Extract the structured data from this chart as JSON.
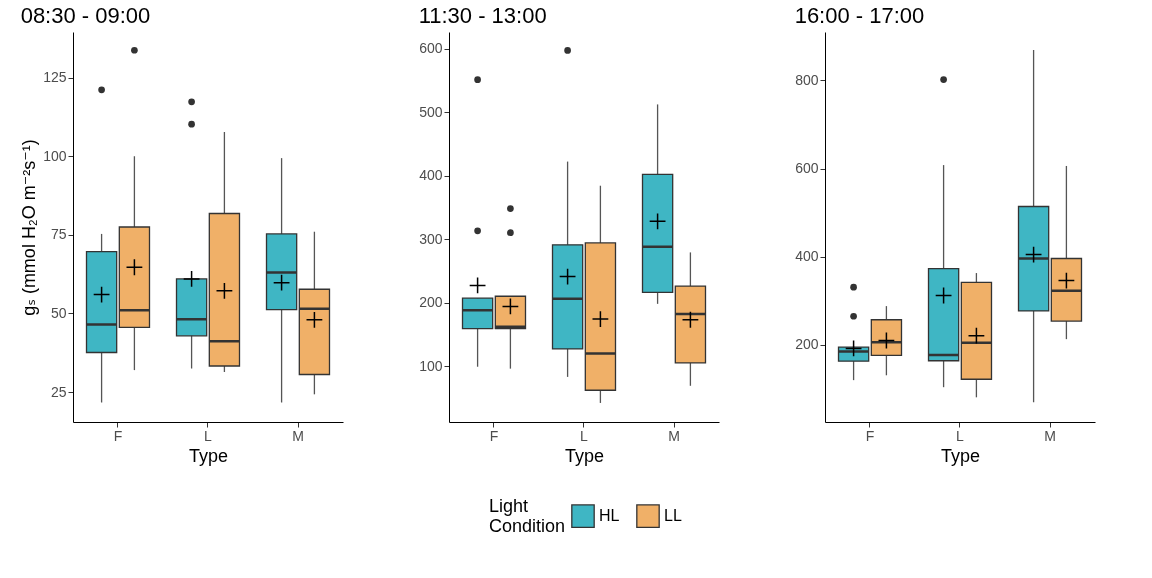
{
  "chart_data": [
    {
      "type": "box",
      "title": "08:30 - 09:00",
      "xlabel": "Type",
      "ylabel": "gₛ (mmol H₂O m⁻²s⁻¹)",
      "categories": [
        "F",
        "L",
        "M"
      ],
      "ylim": [
        15.5,
        139.5
      ],
      "yticks": [
        25,
        50,
        75,
        100,
        125
      ],
      "series": [
        {
          "color": "#3fb6c4",
          "boxes": [
            {
              "low": 21.7,
              "q1": 37.6,
              "median": 46.5,
              "q3": 69.7,
              "high": 75.3,
              "mean": 56.0,
              "outliers": [
                121.1
              ]
            },
            {
              "low": 32.5,
              "q1": 42.9,
              "median": 48.2,
              "q3": 61.0,
              "high": 61.0,
              "mean": 61.0,
              "outliers": [
                117.3,
                110.2
              ]
            },
            {
              "low": 21.7,
              "q1": 51.2,
              "median": 63.0,
              "q3": 75.3,
              "high": 99.4,
              "mean": 59.8
            }
          ]
        },
        {
          "color": "#f0b068",
          "boxes": [
            {
              "low": 32.0,
              "q1": 45.6,
              "median": 51.0,
              "q3": 77.5,
              "high": 100.0,
              "mean": 64.7,
              "outliers": [
                133.7
              ]
            },
            {
              "low": 31.4,
              "q1": 33.3,
              "median": 41.2,
              "q3": 81.8,
              "high": 107.7,
              "mean": 57.2
            },
            {
              "low": 24.3,
              "q1": 30.6,
              "median": 51.5,
              "q3": 57.7,
              "high": 76.0,
              "mean": 48.0
            }
          ]
        }
      ]
    },
    {
      "type": "box",
      "title": "11:30 - 13:00",
      "xlabel": "Type",
      "categories": [
        "F",
        "L",
        "M"
      ],
      "ylim": [
        12,
        626
      ],
      "yticks": [
        100,
        200,
        300,
        400,
        500,
        600
      ],
      "legend": "bottom",
      "legend_title": "Light Condition",
      "series": [
        {
          "name": "HL",
          "color": "#3fb6c4",
          "boxes": [
            {
              "low": 99,
              "q1": 159,
              "median": 188,
              "q3": 207,
              "high": 207,
              "mean": 227,
              "outliers": [
                551,
                313
              ]
            },
            {
              "low": 83,
              "q1": 127,
              "median": 206,
              "q3": 291,
              "high": 422,
              "mean": 241,
              "outliers": [
                597
              ]
            },
            {
              "low": 198,
              "q1": 216,
              "median": 288,
              "q3": 402,
              "high": 512,
              "mean": 328
            }
          ]
        },
        {
          "name": "LL",
          "color": "#f0b068",
          "boxes": [
            {
              "low": 96,
              "q1": 159,
              "median": 162,
              "q3": 210,
              "high": 210,
              "mean": 194,
              "outliers": [
                348,
                310
              ]
            },
            {
              "low": 42,
              "q1": 62,
              "median": 120,
              "q3": 294,
              "high": 384,
              "mean": 174
            },
            {
              "low": 69,
              "q1": 105,
              "median": 182,
              "q3": 226,
              "high": 279,
              "mean": 173
            }
          ]
        }
      ]
    },
    {
      "type": "box",
      "title": "16:00 - 17:00",
      "xlabel": "Type",
      "categories": [
        "F",
        "L",
        "M"
      ],
      "ylim": [
        25,
        910
      ],
      "yticks": [
        200,
        400,
        600,
        800
      ],
      "series": [
        {
          "color": "#3fb6c4",
          "boxes": [
            {
              "low": 120,
              "q1": 163,
              "median": 185,
              "q3": 195,
              "high": 197,
              "mean": 192,
              "outliers": [
                331,
                265
              ]
            },
            {
              "low": 104,
              "q1": 164,
              "median": 177,
              "q3": 373,
              "high": 608,
              "mean": 312,
              "outliers": [
                802
              ]
            },
            {
              "low": 70,
              "q1": 277,
              "median": 396,
              "q3": 514,
              "high": 869,
              "mean": 405
            }
          ]
        },
        {
          "color": "#f0b068",
          "boxes": [
            {
              "low": 131,
              "q1": 176,
              "median": 206,
              "q3": 257,
              "high": 288,
              "mean": 210
            },
            {
              "low": 81,
              "q1": 122,
              "median": 205,
              "q3": 342,
              "high": 363,
              "mean": 221
            },
            {
              "low": 213,
              "q1": 254,
              "median": 323,
              "q3": 396,
              "high": 606,
              "mean": 346
            }
          ]
        }
      ]
    }
  ]
}
